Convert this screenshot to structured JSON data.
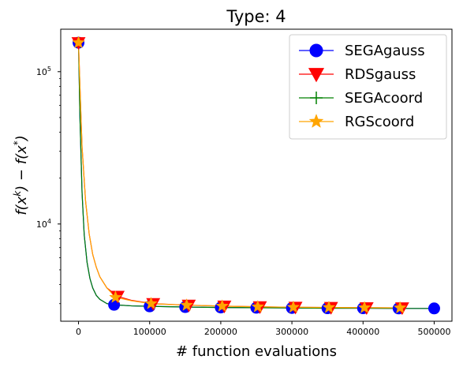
{
  "chart_data": {
    "type": "line",
    "title": "Type: 4",
    "xlabel": "# function evaluations",
    "ylabel_parts": [
      "f(x",
      "k",
      ") − f(x",
      "*",
      ")"
    ],
    "yscale": "log",
    "xlim": [
      -25000,
      525000
    ],
    "ylim": [
      2300,
      190000
    ],
    "xticks": [
      0,
      100000,
      200000,
      300000,
      400000,
      500000
    ],
    "xtick_labels": [
      "0",
      "100000",
      "200000",
      "300000",
      "400000",
      "500000"
    ],
    "yticks": [
      10000,
      100000
    ],
    "ytick_labels": [
      [
        "10",
        "4"
      ],
      [
        "10",
        "5"
      ]
    ],
    "grid": false,
    "legend_position": "top-right",
    "series": [
      {
        "name": "SEGAgauss",
        "color": "#0000ff",
        "marker": "circle",
        "line_x": [
          0,
          2000,
          5000,
          8000,
          12000,
          16000,
          20000,
          25000,
          30000,
          40000,
          50000,
          75000,
          100000,
          150000,
          200000,
          250000,
          300000,
          350000,
          400000,
          450000,
          500000
        ],
        "line_y": [
          155000,
          50000,
          16000,
          8500,
          5600,
          4400,
          3800,
          3400,
          3200,
          3000,
          2950,
          2900,
          2880,
          2850,
          2830,
          2820,
          2810,
          2800,
          2800,
          2790,
          2790
        ],
        "marker_x": [
          0,
          50000,
          100000,
          150000,
          200000,
          250000,
          300000,
          350000,
          400000,
          450000,
          500000
        ],
        "marker_y": [
          155000,
          2950,
          2880,
          2850,
          2830,
          2820,
          2810,
          2800,
          2800,
          2790,
          2790
        ]
      },
      {
        "name": "RDSgauss",
        "color": "#ff0000",
        "marker": "triangle-down",
        "line_x": [
          0,
          2000,
          5000,
          10000,
          15000,
          20000,
          25000,
          30000,
          40000,
          55000,
          75000,
          105000,
          155000,
          205000,
          255000,
          305000,
          355000,
          405000,
          455000
        ],
        "line_y": [
          155000,
          80000,
          32000,
          14000,
          8600,
          6300,
          5200,
          4500,
          3800,
          3350,
          3150,
          3000,
          2930,
          2890,
          2860,
          2840,
          2830,
          2820,
          2815
        ],
        "marker_x": [
          0,
          55000,
          105000,
          155000,
          205000,
          255000,
          305000,
          355000,
          405000,
          455000
        ],
        "marker_y": [
          155000,
          3350,
          3000,
          2930,
          2890,
          2860,
          2840,
          2830,
          2820,
          2815
        ]
      },
      {
        "name": "SEGAcoord",
        "color": "#008000",
        "marker": "plus",
        "line_x": [
          0,
          2000,
          5000,
          8000,
          12000,
          16000,
          20000,
          25000,
          30000,
          40000,
          50000,
          75000,
          100000,
          150000,
          200000,
          250000,
          300000,
          350000,
          400000,
          450000,
          500000
        ],
        "line_y": [
          155000,
          50000,
          16000,
          8500,
          5600,
          4400,
          3800,
          3400,
          3200,
          3000,
          2950,
          2900,
          2880,
          2850,
          2830,
          2820,
          2810,
          2800,
          2800,
          2790,
          2790
        ],
        "marker_x": [],
        "marker_y": []
      },
      {
        "name": "RGScoord",
        "color": "#ffa500",
        "marker": "star",
        "line_x": [
          0,
          2000,
          5000,
          10000,
          15000,
          20000,
          25000,
          30000,
          40000,
          52000,
          75000,
          102000,
          152000,
          202000,
          252000,
          302000,
          352000,
          402000,
          452000
        ],
        "line_y": [
          155000,
          80000,
          32000,
          14000,
          8600,
          6300,
          5200,
          4500,
          3800,
          3300,
          3130,
          3000,
          2930,
          2890,
          2860,
          2840,
          2830,
          2820,
          2815
        ],
        "marker_x": [
          0,
          52000,
          102000,
          152000,
          202000,
          252000,
          302000,
          352000,
          402000,
          452000
        ],
        "marker_y": [
          155000,
          3300,
          3000,
          2930,
          2890,
          2860,
          2840,
          2830,
          2820,
          2815
        ]
      }
    ]
  }
}
